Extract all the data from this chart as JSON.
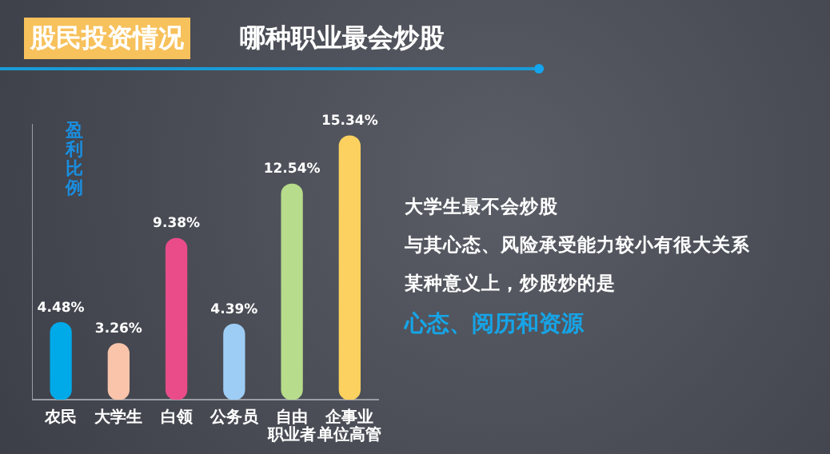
{
  "chart_data": {
    "type": "bar",
    "title": "股民投资情况",
    "subtitle": "哪种职业最会炒股",
    "ylabel": "盈利比例",
    "categories": [
      "农民",
      "大学生",
      "白领",
      "公务员",
      "自由职业者",
      "企事业单位高管"
    ],
    "values": [
      4.48,
      3.26,
      9.38,
      4.39,
      12.54,
      15.34
    ],
    "colors": [
      "#00a9e8",
      "#f9c4aa",
      "#ea4c89",
      "#9dcdf5",
      "#b7dc8c",
      "#fcd15f"
    ],
    "value_labels": [
      "4.48%",
      "3.26%",
      "9.38%",
      "4.39%",
      "12.54%",
      "15.34%"
    ],
    "ylim": [
      0,
      16
    ],
    "tick_labels": "x",
    "grid": false,
    "legend": false,
    "annotations": [
      "大学生最不会炒股",
      "与其心态、风险承受能力较小有很大关系",
      "某种意义上，炒股炒的是",
      "心态、阅历和资源"
    ]
  }
}
